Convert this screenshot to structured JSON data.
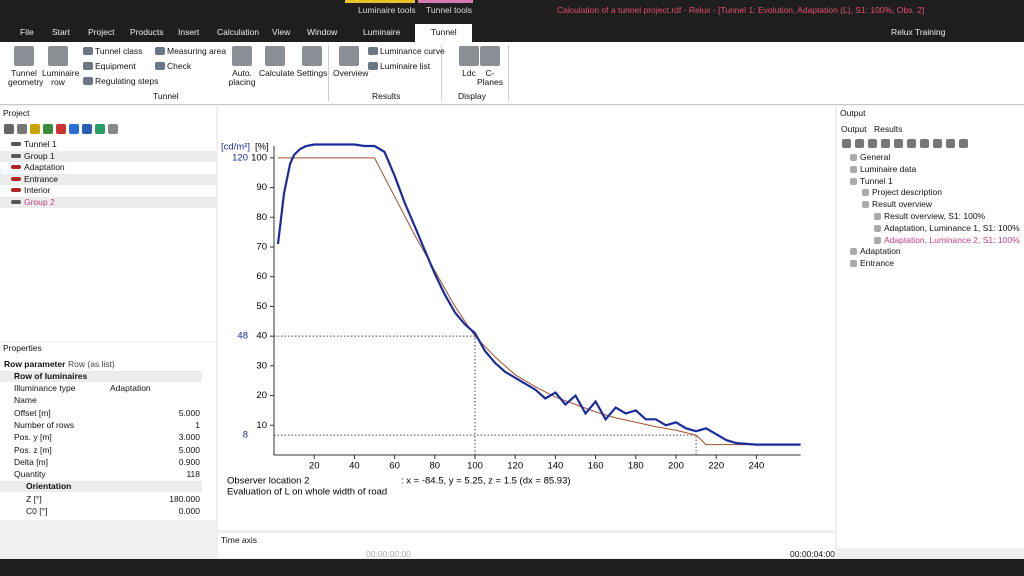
{
  "title_bar": {
    "context_tabs": [
      "Luminaire tools",
      "Tunnel tools"
    ],
    "document_title": "Calculation of a tunnel project.rdf - Relux - [Tunnel 1: Evolution, Adaptation (L), S1: 100%, Obs. 2]"
  },
  "menu": {
    "tabs": [
      "File",
      "Start",
      "Project",
      "Products",
      "Insert",
      "Calculation",
      "View",
      "Window",
      "Luminaire",
      "Tunnel"
    ],
    "user": "Relux Training"
  },
  "ribbon": {
    "tunnel": {
      "label": "Tunnel",
      "buttons": [
        "Tunnel geometry",
        "Luminaire row",
        "Tunnel class",
        "Equipment",
        "Regulating steps",
        "Measuring area",
        "Check",
        "Auto. placing",
        "Calculate",
        "Settings"
      ]
    },
    "results": {
      "label": "Results",
      "buttons": [
        "Overview",
        "Luminance curve",
        "Luminaire list"
      ]
    },
    "display": {
      "label": "Display",
      "buttons": [
        "Ldc",
        "C-Planes"
      ]
    }
  },
  "project_panel": {
    "title": "Project",
    "tree": [
      "Tunnel 1",
      "Group  1",
      "Adaptation",
      "Entrance",
      "Interior",
      "Group  2"
    ]
  },
  "properties_panel": {
    "title": "Properties",
    "tabs": [
      "Row parameter",
      "Row (as list)"
    ],
    "section": "Row of luminaires",
    "rows": [
      [
        "Illuminance type",
        "Adaptation"
      ],
      [
        "Name"
      ],
      [
        "Offset [m]",
        "5.000"
      ],
      [
        "Number of rows",
        "1"
      ],
      [
        "Pos. y [m]",
        "3.000"
      ],
      [
        "Pos. z [m]",
        "5.000"
      ],
      [
        "Delta [m]",
        "0.900"
      ],
      [
        "Quantity",
        "118"
      ]
    ],
    "subsection": "Orientation",
    "subrows": [
      [
        "Z [°]",
        "180.000"
      ],
      [
        "C0 [°]",
        "0.000"
      ]
    ]
  },
  "output_panel": {
    "title": "Output",
    "tabs": [
      "Output",
      "Results"
    ],
    "tree": [
      "General",
      "Luminaire data",
      "Tunnel 1",
      "Project description",
      "Result overview",
      "Result overview, S1: 100%",
      "Adaptation, Luminance 1, S1: 100%",
      "Adaptation, Luminance 2, S1: 100%",
      "Adaptation",
      "Entrance"
    ]
  },
  "time_axis": {
    "title": "Time axis",
    "start": "00:00:00:00",
    "end": "00:00:04:00"
  },
  "chart_data": {
    "type": "line",
    "y_unit_label": "[%]",
    "y2_unit_label": "[cd/m²]",
    "xlim": [
      0,
      262
    ],
    "ylim": [
      0,
      104
    ],
    "y2lim": [
      0,
      124.8
    ],
    "xticks": [
      20,
      40,
      60,
      80,
      100,
      120,
      140,
      160,
      180,
      200,
      220,
      240
    ],
    "yticks": [
      10,
      20,
      30,
      40,
      50,
      60,
      70,
      80,
      90,
      100
    ],
    "y2ticks": [
      8,
      48,
      120
    ],
    "series": [
      {
        "name": "Luminance",
        "color": "#1a2c9c",
        "x": [
          2,
          5,
          8,
          10,
          13,
          16,
          20,
          25,
          30,
          35,
          40,
          45,
          50,
          55,
          60,
          65,
          70,
          75,
          80,
          85,
          90,
          95,
          100,
          105,
          110,
          115,
          120,
          125,
          130,
          135,
          140,
          145,
          150,
          155,
          160,
          165,
          170,
          175,
          180,
          185,
          190,
          195,
          200,
          205,
          210,
          215,
          220,
          225,
          230,
          240,
          250,
          262
        ],
        "values": [
          71,
          88,
          98,
          101,
          103,
          104,
          104.5,
          104.5,
          104.5,
          104.5,
          104.5,
          104,
          104,
          102,
          94,
          85,
          77,
          69,
          61,
          54,
          48,
          44,
          41,
          35,
          31,
          28,
          26,
          24,
          22,
          19,
          21,
          17,
          20,
          14,
          18,
          12,
          16,
          14,
          15,
          12,
          12,
          10,
          11,
          9,
          8,
          9,
          7,
          5,
          4,
          3.5,
          3.5,
          3.5
        ]
      },
      {
        "name": "Requirement",
        "color": "#a0522d",
        "x": [
          2,
          50,
          60,
          70,
          80,
          90,
          100,
          110,
          120,
          130,
          140,
          150,
          160,
          170,
          180,
          190,
          200,
          210,
          215,
          262
        ],
        "values": [
          100,
          100,
          87,
          74,
          62,
          50,
          40,
          33,
          27,
          23,
          19.5,
          17,
          14.5,
          12.5,
          11,
          9.5,
          8.3,
          6.7,
          3.5,
          3.5
        ]
      }
    ],
    "markers": [
      {
        "x": 100,
        "y": 40
      },
      {
        "x": 210,
        "y": 6.7
      }
    ],
    "annotations": [
      "Observer location 2",
      "Evaluation of L on whole width of road",
      ": x = -84.5, y = 5.25, z = 1.5 (dx = 85.93)"
    ]
  }
}
